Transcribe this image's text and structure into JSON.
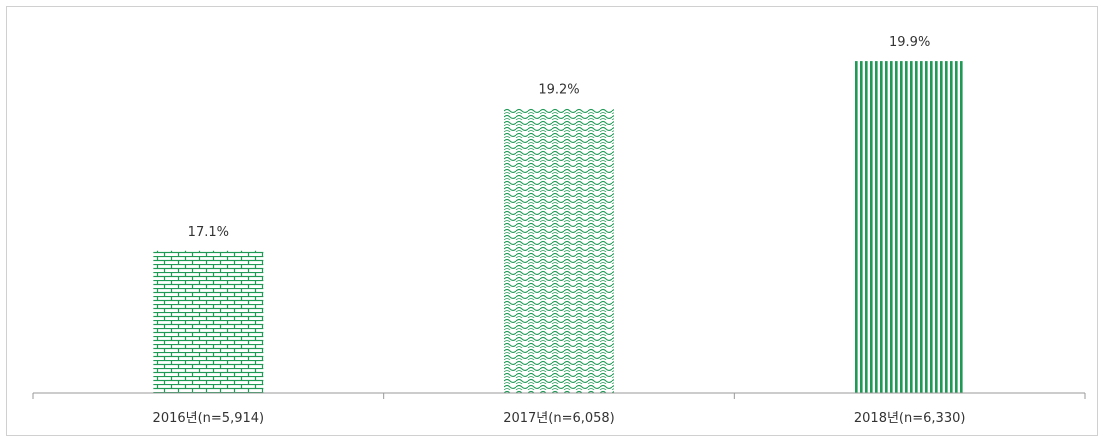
{
  "chart_data": {
    "type": "bar",
    "categories": [
      "2016년(n=5,914)",
      "2017년(n=6,058)",
      "2018년(n=6,330)"
    ],
    "values": [
      17.1,
      19.2,
      19.9
    ],
    "data_labels": [
      "17.1%",
      "19.2%",
      "19.9%"
    ],
    "title": "",
    "xlabel": "",
    "ylabel": "",
    "ylim": [
      15.0,
      20.3
    ],
    "grid": false,
    "legend": "none",
    "bar_color": "#1e9a55",
    "bar_patterns": [
      "brick",
      "wave",
      "vertical-lines"
    ]
  }
}
